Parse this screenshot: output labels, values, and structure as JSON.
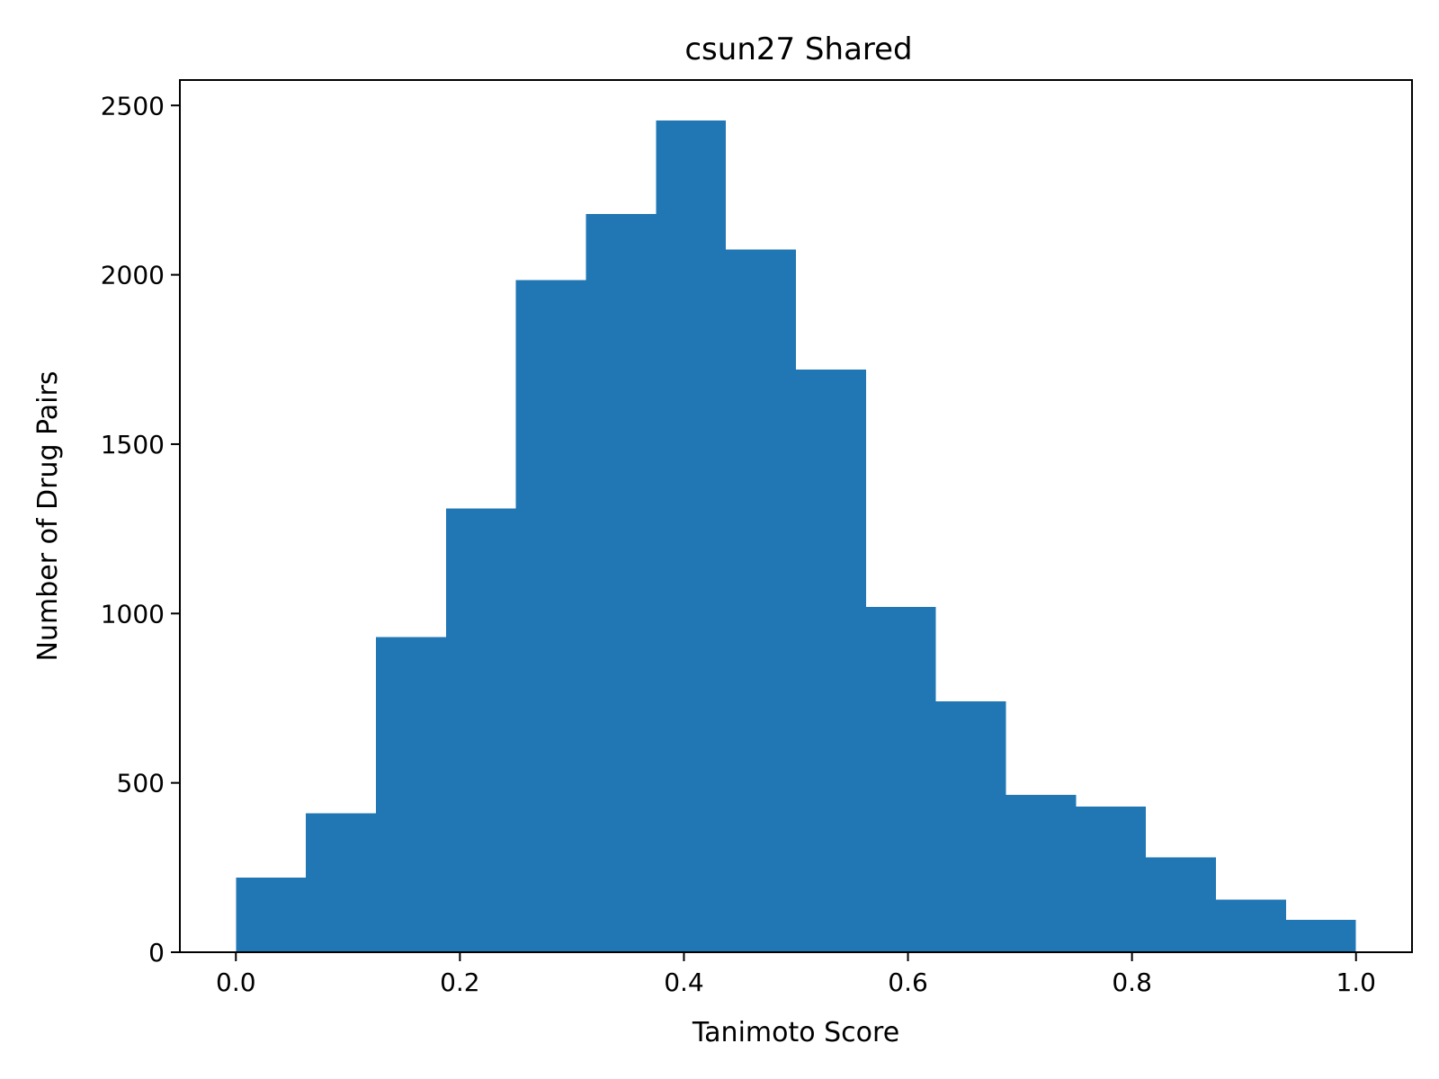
{
  "chart_data": {
    "type": "bar",
    "title": "csun27 Shared",
    "xlabel": "Tanimoto Score",
    "ylabel": "Number of Drug Pairs",
    "bin_edges": [
      0.0,
      0.0625,
      0.125,
      0.1875,
      0.25,
      0.3125,
      0.375,
      0.4375,
      0.5,
      0.5625,
      0.625,
      0.6875,
      0.75,
      0.8125,
      0.875,
      0.9375,
      1.0
    ],
    "values": [
      220,
      410,
      930,
      1310,
      1985,
      2180,
      2455,
      2075,
      1720,
      1020,
      740,
      465,
      430,
      280,
      155,
      95
    ],
    "xlim": [
      -0.05,
      1.05
    ],
    "ylim": [
      0,
      2575
    ],
    "x_ticks": [
      0.0,
      0.2,
      0.4,
      0.6,
      0.8,
      1.0
    ],
    "x_tick_labels": [
      "0.0",
      "0.2",
      "0.4",
      "0.6",
      "0.8",
      "1.0"
    ],
    "y_ticks": [
      0,
      500,
      1000,
      1500,
      2000,
      2500
    ],
    "y_tick_labels": [
      "0",
      "500",
      "1000",
      "1500",
      "2000",
      "2500"
    ],
    "bar_color": "#2077b4",
    "grid": false,
    "legend": "none"
  }
}
